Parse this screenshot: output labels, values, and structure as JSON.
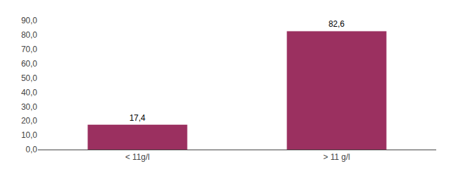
{
  "chart_data": {
    "type": "bar",
    "categories": [
      "< 11g/l",
      "> 11 g/l"
    ],
    "values": [
      17.4,
      82.6
    ],
    "value_labels": [
      "17,4",
      "82,6"
    ],
    "data_labels": true,
    "color": "#9B3060",
    "ylim": [
      0,
      90
    ],
    "yticks": [
      {
        "value": 0,
        "label": "0,0"
      },
      {
        "value": 10,
        "label": "10,0"
      },
      {
        "value": 20,
        "label": "20,0"
      },
      {
        "value": 30,
        "label": "30,0"
      },
      {
        "value": 40,
        "label": "40,0"
      },
      {
        "value": 50,
        "label": "50,0"
      },
      {
        "value": 60,
        "label": "60,0"
      },
      {
        "value": 70,
        "label": "70,0"
      },
      {
        "value": 80,
        "label": "80,0"
      },
      {
        "value": 90,
        "label": "90,0"
      }
    ],
    "grid": false
  }
}
